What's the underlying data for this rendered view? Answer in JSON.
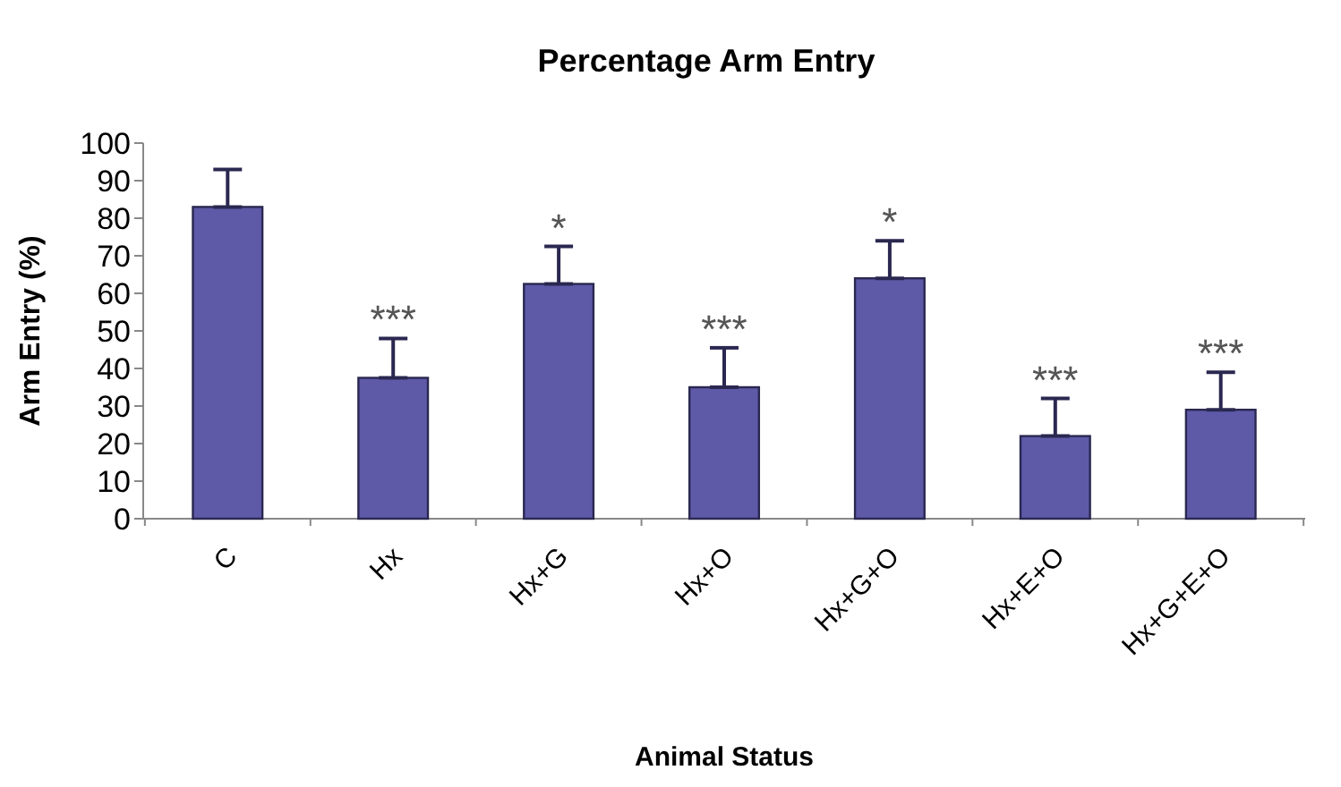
{
  "chart_data": {
    "type": "bar",
    "title": "Percentage Arm Entry",
    "xlabel": "Animal Status",
    "ylabel": "Arm Entry (%)",
    "categories": [
      "C",
      "Hx",
      "Hx+G",
      "Hx+O",
      "Hx+G+O",
      "Hx+E+O",
      "Hx+G+E+O"
    ],
    "values": [
      83,
      37.5,
      62.5,
      35,
      64,
      22,
      29
    ],
    "errors": [
      [
        83,
        93
      ],
      [
        37.5,
        48
      ],
      [
        62.5,
        72.5
      ],
      [
        35,
        45.5
      ],
      [
        64,
        74
      ],
      [
        22,
        32
      ],
      [
        29,
        39
      ]
    ],
    "color": "#5e5aa8",
    "ylim": [
      0,
      100
    ],
    "yticks": [
      0,
      10,
      20,
      30,
      40,
      50,
      60,
      70,
      80,
      90,
      100
    ],
    "grid": false,
    "annotations": [
      {
        "text": "***",
        "x": "Hx",
        "y": 48
      },
      {
        "text": "*",
        "x": "Hx+G",
        "y": 72.5
      },
      {
        "text": "***",
        "x": "Hx+O",
        "y": 45.5
      },
      {
        "text": "*",
        "x": "Hx+G+O",
        "y": 74
      },
      {
        "text": "***",
        "x": "Hx+E+O",
        "y": 32
      },
      {
        "text": "***",
        "x": "Hx+G+E+O",
        "y": 39
      }
    ]
  }
}
